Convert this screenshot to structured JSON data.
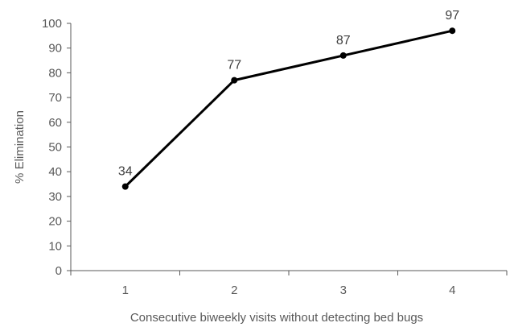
{
  "chart_data": {
    "type": "line",
    "categories": [
      "1",
      "2",
      "3",
      "4"
    ],
    "series": [
      {
        "values": [
          34,
          77,
          87,
          97
        ]
      }
    ],
    "data_labels": [
      "34",
      "77",
      "87",
      "97"
    ],
    "xlabel": "Consecutive biweekly visits without detecting bed bugs",
    "ylabel": "% Elimination",
    "ylim": [
      0,
      100
    ],
    "yticks": [
      "0",
      "10",
      "20",
      "30",
      "40",
      "50",
      "60",
      "70",
      "80",
      "90",
      "100"
    ],
    "grid": false,
    "line_color": "#000000",
    "axis_color": "#595959"
  }
}
